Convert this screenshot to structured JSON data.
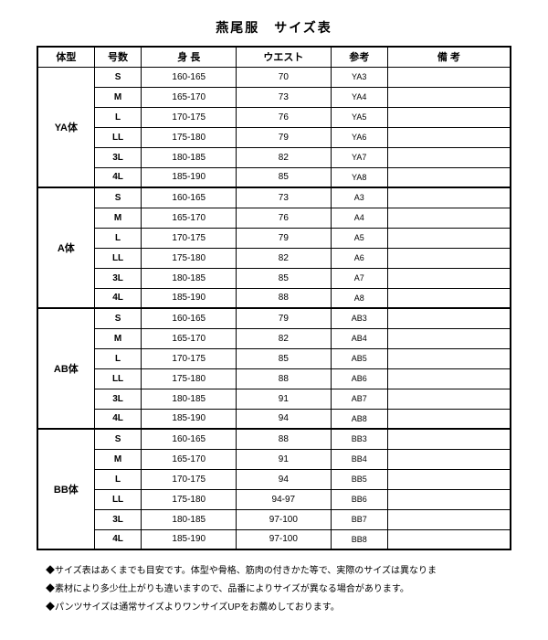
{
  "title": "燕尾服　サイズ表",
  "headers": {
    "taiki": "体型",
    "gousuu": "号数",
    "shinchou": "身 長",
    "waist": "ウエスト",
    "sankou": "参考",
    "bikou": "備 考"
  },
  "groups": [
    {
      "body_type": "YA体",
      "rows": [
        {
          "size": "S",
          "height": "160-165",
          "waist": "70",
          "ref": "YA3"
        },
        {
          "size": "M",
          "height": "165-170",
          "waist": "73",
          "ref": "YA4"
        },
        {
          "size": "L",
          "height": "170-175",
          "waist": "76",
          "ref": "YA5"
        },
        {
          "size": "LL",
          "height": "175-180",
          "waist": "79",
          "ref": "YA6"
        },
        {
          "size": "3L",
          "height": "180-185",
          "waist": "82",
          "ref": "YA7"
        },
        {
          "size": "4L",
          "height": "185-190",
          "waist": "85",
          "ref": "YA8"
        }
      ]
    },
    {
      "body_type": "A体",
      "rows": [
        {
          "size": "S",
          "height": "160-165",
          "waist": "73",
          "ref": "A3"
        },
        {
          "size": "M",
          "height": "165-170",
          "waist": "76",
          "ref": "A4"
        },
        {
          "size": "L",
          "height": "170-175",
          "waist": "79",
          "ref": "A5"
        },
        {
          "size": "LL",
          "height": "175-180",
          "waist": "82",
          "ref": "A6"
        },
        {
          "size": "3L",
          "height": "180-185",
          "waist": "85",
          "ref": "A7"
        },
        {
          "size": "4L",
          "height": "185-190",
          "waist": "88",
          "ref": "A8"
        }
      ]
    },
    {
      "body_type": "AB体",
      "rows": [
        {
          "size": "S",
          "height": "160-165",
          "waist": "79",
          "ref": "AB3"
        },
        {
          "size": "M",
          "height": "165-170",
          "waist": "82",
          "ref": "AB4"
        },
        {
          "size": "L",
          "height": "170-175",
          "waist": "85",
          "ref": "AB5"
        },
        {
          "size": "LL",
          "height": "175-180",
          "waist": "88",
          "ref": "AB6"
        },
        {
          "size": "3L",
          "height": "180-185",
          "waist": "91",
          "ref": "AB7"
        },
        {
          "size": "4L",
          "height": "185-190",
          "waist": "94",
          "ref": "AB8"
        }
      ]
    },
    {
      "body_type": "BB体",
      "rows": [
        {
          "size": "S",
          "height": "160-165",
          "waist": "88",
          "ref": "BB3"
        },
        {
          "size": "M",
          "height": "165-170",
          "waist": "91",
          "ref": "BB4"
        },
        {
          "size": "L",
          "height": "170-175",
          "waist": "94",
          "ref": "BB5"
        },
        {
          "size": "LL",
          "height": "175-180",
          "waist": "94-97",
          "ref": "BB6"
        },
        {
          "size": "3L",
          "height": "180-185",
          "waist": "97-100",
          "ref": "BB7"
        },
        {
          "size": "4L",
          "height": "185-190",
          "waist": "97-100",
          "ref": "BB8"
        }
      ]
    }
  ],
  "notes": [
    "◆サイズ表はあくまでも目安です。体型や骨格、筋肉の付きかた等で、実際のサイズは異なりま",
    "◆素材により多少仕上がりも違いますので、品番によりサイズが異なる場合があります。",
    "◆パンツサイズは通常サイズよりワンサイズUPをお薦めしております。"
  ]
}
